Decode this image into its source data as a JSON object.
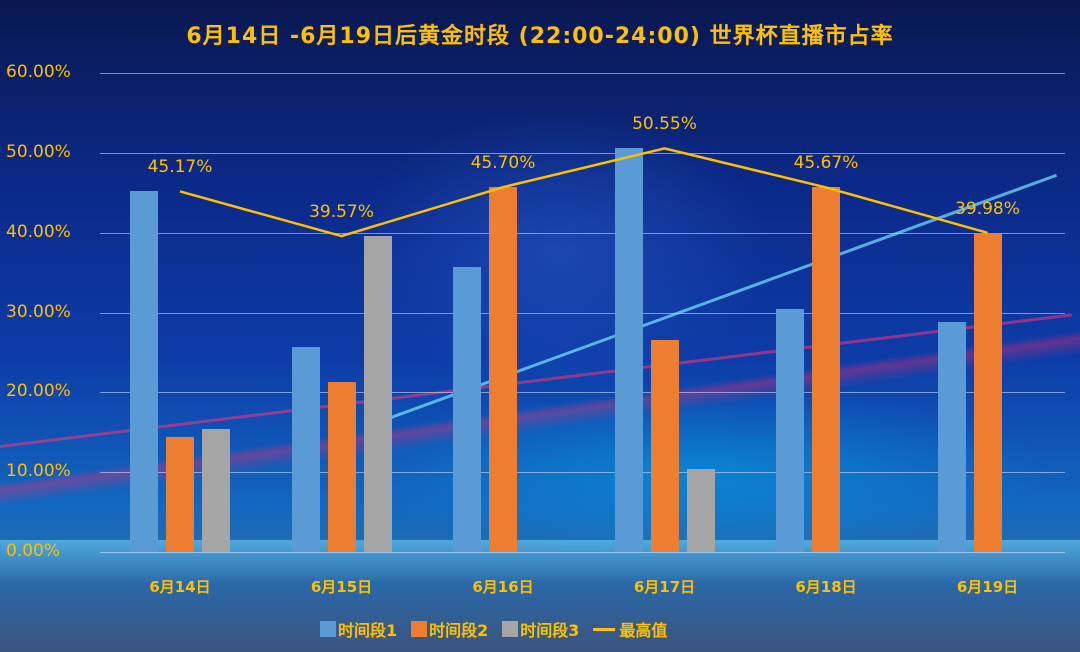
{
  "chart_data": {
    "type": "bar",
    "title": "6月14日-6月19日后黄金时段（22:00-24:00）世界杯直播市占率",
    "xlabel": "",
    "ylabel": "",
    "ylim": [
      0,
      60
    ],
    "yticks": [
      "0.00%",
      "10.00%",
      "20.00%",
      "30.00%",
      "40.00%",
      "50.00%",
      "60.00%"
    ],
    "grid": true,
    "legend_position": "bottom",
    "categories": [
      "6月14日",
      "6月15日",
      "6月16日",
      "6月17日",
      "6月18日",
      "6月19日"
    ],
    "series": [
      {
        "name": "时间段1",
        "type": "bar",
        "color": "#5b9bd5",
        "values": [
          45.17,
          25.7,
          35.7,
          50.55,
          30.4,
          28.8
        ]
      },
      {
        "name": "时间段2",
        "type": "bar",
        "color": "#ed7d31",
        "values": [
          14.4,
          21.3,
          45.7,
          26.6,
          45.67,
          39.98
        ]
      },
      {
        "name": "时间段3",
        "type": "bar",
        "color": "#a5a5a5",
        "values": [
          15.4,
          39.57,
          null,
          10.4,
          null,
          null
        ]
      },
      {
        "name": "最高值",
        "type": "line",
        "color": "#ffc000",
        "values": [
          45.17,
          39.57,
          45.7,
          50.55,
          45.67,
          39.98
        ]
      }
    ],
    "annotations": [
      "45.17%",
      "39.57%",
      "45.70%",
      "50.55%",
      "45.67%",
      "39.98%"
    ]
  },
  "title": "6月14日 -6月19日后黄金时段 (22:00-24:00) 世界杯直播市占率",
  "legend": {
    "s1": "时间段1",
    "s2": "时间段2",
    "s3": "时间段3",
    "line": "最高值"
  }
}
